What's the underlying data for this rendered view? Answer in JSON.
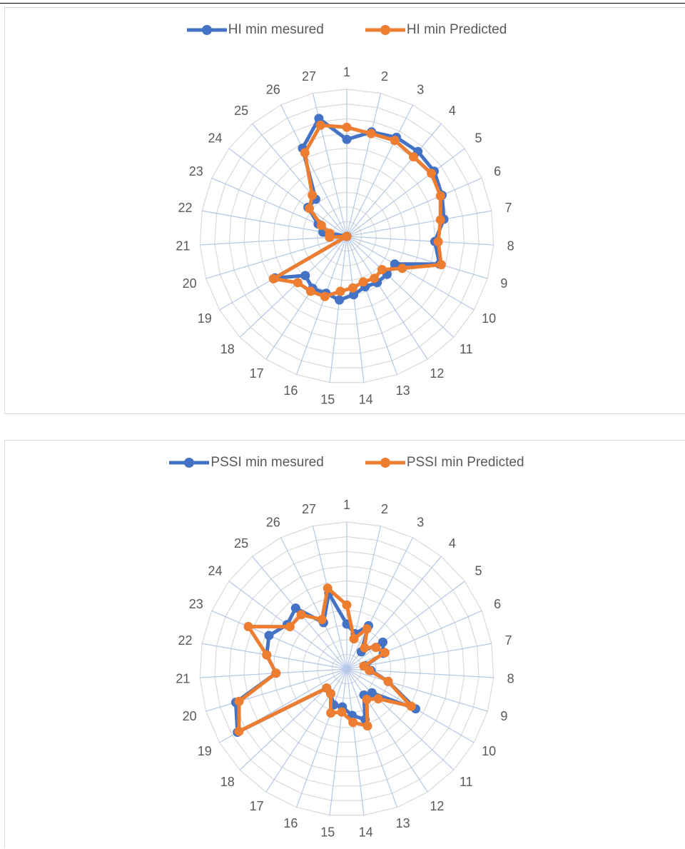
{
  "colors": {
    "measured": "#4472C4",
    "predicted": "#ED7D31",
    "grid_ring": "#d9d9d9",
    "spoke": "#b4c7e7"
  },
  "chart_data": [
    {
      "type": "radar",
      "categories": [
        "1",
        "2",
        "3",
        "4",
        "5",
        "6",
        "7",
        "8",
        "9",
        "10",
        "11",
        "12",
        "13",
        "14",
        "15",
        "16",
        "17",
        "18",
        "19",
        "20",
        "21",
        "22",
        "23",
        "24",
        "25",
        "26",
        "27"
      ],
      "series": [
        {
          "name": "HI min mesured",
          "values": [
            5.6,
            6.2,
            6.4,
            6.4,
            6.3,
            6.0,
            5.7,
            5.1,
            5.6,
            3.2,
            3.2,
            3.2,
            3.1,
            3.4,
            3.7,
            3.5,
            3.6,
            3.3,
            4.8,
            0,
            0,
            1.4,
            1.8,
            2.8,
            2.8,
            5.7,
            7.0
          ]
        },
        {
          "name": "HI min Predicted",
          "values": [
            6.3,
            6.1,
            6.2,
            6.0,
            6.1,
            5.9,
            5.5,
            5.3,
            5.7,
            3.7,
            2.8,
            2.9,
            2.8,
            3.0,
            3.2,
            3.7,
            3.8,
            3.9,
            4.9,
            0,
            1.0,
            1.0,
            1.6,
            2.7,
            3.1,
            5.4,
            6.6
          ]
        }
      ],
      "rmax": 8.5,
      "rings": 10,
      "grid": true,
      "legend": "top"
    },
    {
      "type": "radar",
      "categories": [
        "1",
        "2",
        "3",
        "4",
        "5",
        "6",
        "7",
        "8",
        "9",
        "10",
        "11",
        "12",
        "13",
        "14",
        "15",
        "16",
        "17",
        "18",
        "19",
        "20",
        "21",
        "22",
        "23",
        "24",
        "25",
        "26",
        "27"
      ],
      "series": [
        {
          "name": "PSSI min mesured",
          "values": [
            2.6,
            2.1,
            2.8,
            1.3,
            2.6,
            2.3,
            1.1,
            1.4,
            2.5,
            4.6,
            2.0,
            1.8,
            3.1,
            2.7,
            2.2,
            2.2,
            1.7,
            1.6,
            7.3,
            6.7,
            4.1,
            4.7,
            4.9,
            4.3,
            4.6,
            3.0,
            4.5
          ]
        },
        {
          "name": "PSSI min Predicted",
          "values": [
            3.7,
            1.8,
            2.6,
            1.6,
            2.1,
            2.4,
            1.0,
            1.3,
            2.5,
            4.3,
            2.5,
            2.1,
            3.5,
            3.1,
            2.5,
            2.7,
            1.7,
            1.6,
            7.2,
            6.5,
            4.1,
            4.7,
            6.2,
            4.1,
            4.1,
            3.2,
            4.8
          ]
        }
      ],
      "rmax": 8.5,
      "rings": 10,
      "grid": true,
      "legend": "top"
    }
  ]
}
